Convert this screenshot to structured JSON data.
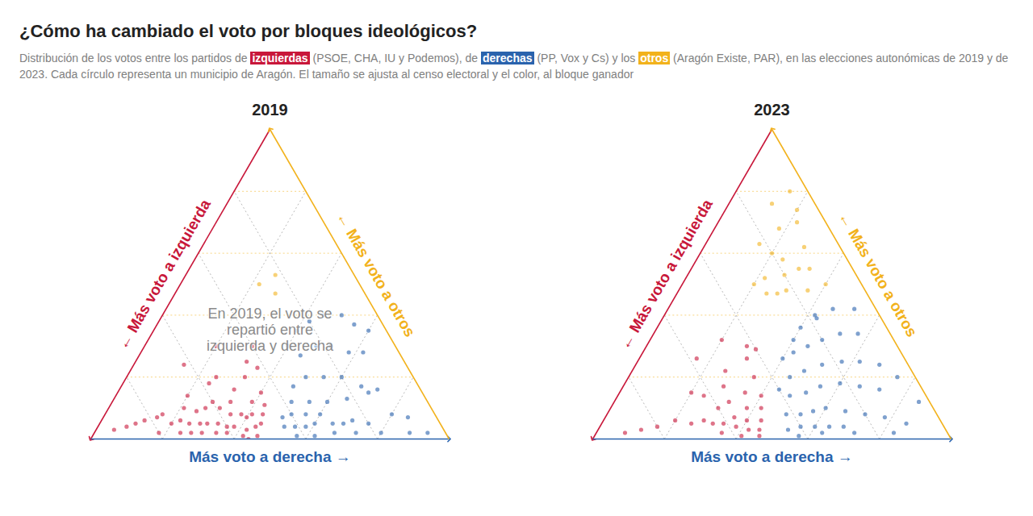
{
  "title": "¿Cómo ha cambiado el voto por bloques ideológicos?",
  "subtitle": "Distribución de los votos entre los partidos de izquierdas (PSOE, CHA, IU y Podemos), de derechas (PP, Vox y Cs) y los otros (Aragón Existe, PAR), en las elecciones autonómicas de 2019 y de 2023. Cada círculo representa un municipio de Aragón. El tamaño se ajusta al censo electoral y el color, al bloque ganador",
  "chart_data": [
    {
      "type": "ternary",
      "title": "2019",
      "axis_labels": {
        "izquierda": "← Más voto a izquierda",
        "derecha": "Más voto a derecha →",
        "otros": "← Más voto a otros"
      },
      "annotation": "En 2019, el voto se repartió entre izquierda y derecha",
      "xlim": [
        0,
        100
      ],
      "xticks": [
        20,
        40,
        60,
        80
      ],
      "grid": true,
      "tick_labels": false,
      "series": [
        {
          "name": "izquierdas",
          "color": "#c8173a",
          "izquierda": [
            52,
            55,
            58,
            60,
            50,
            53,
            57,
            62,
            65,
            48,
            51,
            54,
            59,
            63,
            67,
            70,
            72,
            75,
            49,
            55,
            60,
            45,
            52,
            58,
            66,
            78,
            82,
            85,
            47,
            55,
            62,
            44,
            50,
            40,
            56,
            61,
            68,
            74,
            80,
            88,
            92,
            46,
            53,
            57,
            64,
            71,
            66,
            69,
            76,
            42
          ],
          "derecha": [
            44,
            42,
            38,
            36,
            45,
            40,
            35,
            33,
            30,
            44,
            41,
            38,
            31,
            27,
            28,
            25,
            22,
            20,
            39,
            33,
            28,
            40,
            32,
            24,
            20,
            15,
            12,
            10,
            33,
            25,
            14,
            31,
            20,
            30,
            44,
            37,
            30,
            24,
            18,
            8,
            5,
            43,
            46,
            42,
            34,
            27,
            25,
            21,
            16,
            35
          ],
          "otros": [
            4,
            3,
            4,
            4,
            5,
            7,
            8,
            5,
            5,
            8,
            8,
            8,
            10,
            10,
            5,
            5,
            6,
            5,
            12,
            12,
            12,
            15,
            16,
            18,
            14,
            7,
            6,
            5,
            20,
            20,
            24,
            25,
            30,
            30,
            0,
            2,
            2,
            2,
            2,
            4,
            3,
            11,
            1,
            1,
            2,
            2,
            9,
            10,
            8,
            23
          ]
        },
        {
          "name": "derechas",
          "color": "#2a63ad",
          "izquierda": [
            44,
            41,
            38,
            35,
            43,
            40,
            36,
            32,
            30,
            27,
            24,
            20,
            38,
            33,
            28,
            35,
            30,
            25,
            20,
            15,
            12,
            8,
            28,
            22,
            18,
            14,
            10,
            20,
            15,
            10,
            30,
            42,
            37,
            31,
            25,
            18,
            10,
            5,
            22,
            16,
            12,
            25,
            8,
            5
          ],
          "derecha": [
            52,
            55,
            58,
            60,
            50,
            52,
            56,
            60,
            65,
            68,
            70,
            75,
            50,
            55,
            60,
            48,
            50,
            55,
            60,
            70,
            80,
            85,
            45,
            48,
            52,
            58,
            62,
            42,
            45,
            50,
            40,
            57,
            62,
            67,
            73,
            80,
            88,
            93,
            65,
            67,
            72,
            40,
            55,
            60
          ],
          "otros": [
            4,
            4,
            4,
            5,
            7,
            8,
            8,
            8,
            5,
            5,
            6,
            5,
            12,
            12,
            12,
            17,
            20,
            20,
            20,
            15,
            8,
            7,
            27,
            30,
            30,
            28,
            28,
            38,
            40,
            40,
            30,
            1,
            1,
            2,
            2,
            2,
            2,
            2,
            13,
            17,
            16,
            35,
            37,
            35
          ]
        },
        {
          "name": "otros",
          "color": "#f2b21c",
          "izquierda": [
            25,
            22,
            28
          ],
          "derecha": [
            28,
            25,
            22
          ],
          "otros": [
            47,
            53,
            50
          ]
        }
      ]
    },
    {
      "type": "ternary",
      "title": "2023",
      "axis_labels": {
        "izquierda": "← Más voto a izquierda",
        "derecha": "Más voto a derecha →",
        "otros": "← Más voto a otros"
      },
      "xlim": [
        0,
        100
      ],
      "xticks": [
        20,
        40,
        60,
        80
      ],
      "grid": true,
      "tick_labels": false,
      "series": [
        {
          "name": "izquierdas",
          "color": "#c8173a",
          "izquierda": [
            52,
            55,
            58,
            50,
            54,
            57,
            61,
            64,
            48,
            52,
            56,
            60,
            66,
            70,
            46,
            50,
            55,
            62,
            74,
            80,
            85,
            90,
            45,
            52,
            58,
            44,
            48,
            42,
            40,
            65,
            53,
            58,
            63
          ],
          "derecha": [
            45,
            42,
            38,
            44,
            40,
            36,
            34,
            31,
            42,
            38,
            32,
            30,
            28,
            25,
            40,
            35,
            28,
            24,
            20,
            16,
            12,
            8,
            35,
            26,
            16,
            30,
            20,
            28,
            31,
            20,
            46,
            41,
            35
          ],
          "otros": [
            3,
            3,
            4,
            6,
            6,
            7,
            5,
            5,
            10,
            10,
            12,
            10,
            6,
            5,
            14,
            15,
            17,
            14,
            6,
            4,
            3,
            2,
            20,
            22,
            26,
            26,
            32,
            30,
            29,
            15,
            1,
            1,
            2
          ]
        },
        {
          "name": "derechas",
          "color": "#2a63ad",
          "izquierda": [
            44,
            40,
            36,
            32,
            28,
            42,
            38,
            34,
            30,
            25,
            20,
            15,
            10,
            38,
            33,
            28,
            22,
            17,
            12,
            35,
            30,
            24,
            18,
            13,
            8,
            30,
            25,
            20,
            14,
            9,
            24,
            18,
            12,
            6,
            18,
            5,
            3,
            42,
            35,
            26,
            15,
            28,
            34,
            40
          ],
          "derecha": [
            53,
            56,
            60,
            64,
            68,
            50,
            54,
            57,
            60,
            66,
            72,
            78,
            85,
            48,
            52,
            55,
            60,
            66,
            72,
            45,
            48,
            52,
            57,
            62,
            68,
            42,
            45,
            48,
            52,
            57,
            40,
            42,
            46,
            52,
            43,
            75,
            85,
            57,
            63,
            72,
            83,
            40,
            40,
            44
          ],
          "otros": [
            3,
            4,
            4,
            4,
            4,
            8,
            8,
            9,
            10,
            9,
            8,
            7,
            5,
            14,
            15,
            17,
            18,
            17,
            16,
            20,
            22,
            24,
            25,
            25,
            24,
            28,
            30,
            32,
            34,
            34,
            36,
            40,
            42,
            42,
            39,
            20,
            12,
            1,
            2,
            2,
            2,
            32,
            26,
            16
          ]
        },
        {
          "name": "otros",
          "color": "#f2b21c",
          "izquierda": [
            28,
            25,
            22,
            20,
            18,
            15,
            12,
            10,
            8,
            14,
            20,
            5,
            6,
            26,
            16,
            10,
            22,
            30,
            12
          ],
          "derecha": [
            25,
            28,
            30,
            27,
            24,
            30,
            33,
            28,
            22,
            18,
            20,
            15,
            20,
            22,
            36,
            40,
            15,
            20,
            12
          ],
          "otros": [
            47,
            47,
            48,
            53,
            58,
            55,
            55,
            62,
            70,
            68,
            60,
            80,
            74,
            52,
            48,
            50,
            63,
            50,
            76
          ]
        }
      ]
    }
  ]
}
